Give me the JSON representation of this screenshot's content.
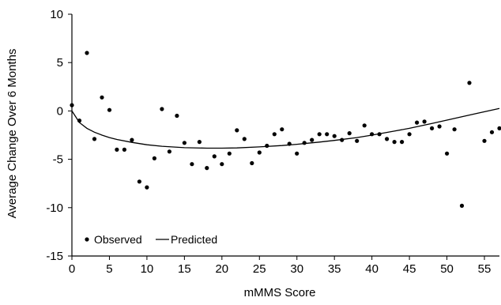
{
  "chart_data": {
    "type": "scatter",
    "title": "",
    "xlabel": "mMMS Score",
    "ylabel": "Average Change Over 6 Months",
    "xlim": [
      0,
      57
    ],
    "ylim": [
      -15,
      10
    ],
    "xticks": [
      0,
      5,
      10,
      15,
      20,
      25,
      30,
      35,
      40,
      45,
      50,
      55
    ],
    "yticks": [
      10,
      5,
      0,
      -5,
      -10,
      -15
    ],
    "grid": false,
    "legend_position": "bottom-left",
    "series": [
      {
        "name": "Observed",
        "kind": "points",
        "points": [
          [
            0,
            0.6
          ],
          [
            1,
            -1.0
          ],
          [
            2,
            6.0
          ],
          [
            3,
            -2.9
          ],
          [
            4,
            1.4
          ],
          [
            5,
            0.1
          ],
          [
            6,
            -4.0
          ],
          [
            7,
            -4.0
          ],
          [
            8,
            -3.0
          ],
          [
            9,
            -7.3
          ],
          [
            10,
            -7.9
          ],
          [
            11,
            -4.9
          ],
          [
            12,
            0.2
          ],
          [
            13,
            -4.2
          ],
          [
            14,
            -0.5
          ],
          [
            15,
            -3.3
          ],
          [
            16,
            -5.5
          ],
          [
            17,
            -3.2
          ],
          [
            18,
            -5.9
          ],
          [
            19,
            -4.7
          ],
          [
            20,
            -5.5
          ],
          [
            21,
            -4.4
          ],
          [
            22,
            -2.0
          ],
          [
            23,
            -2.9
          ],
          [
            24,
            -5.4
          ],
          [
            25,
            -4.3
          ],
          [
            26,
            -3.6
          ],
          [
            27,
            -2.4
          ],
          [
            28,
            -1.9
          ],
          [
            29,
            -3.4
          ],
          [
            30,
            -4.4
          ],
          [
            31,
            -3.3
          ],
          [
            32,
            -3.0
          ],
          [
            33,
            -2.4
          ],
          [
            34,
            -2.4
          ],
          [
            35,
            -2.6
          ],
          [
            36,
            -3.0
          ],
          [
            37,
            -2.3
          ],
          [
            38,
            -3.1
          ],
          [
            39,
            -1.5
          ],
          [
            40,
            -2.4
          ],
          [
            41,
            -2.4
          ],
          [
            42,
            -2.9
          ],
          [
            43,
            -3.2
          ],
          [
            44,
            -3.2
          ],
          [
            45,
            -2.4
          ],
          [
            46,
            -1.2
          ],
          [
            47,
            -1.1
          ],
          [
            48,
            -1.8
          ],
          [
            49,
            -1.6
          ],
          [
            50,
            -4.4
          ],
          [
            51,
            -1.9
          ],
          [
            52,
            -9.8
          ],
          [
            53,
            2.9
          ],
          [
            55,
            -3.1
          ],
          [
            56,
            -2.2
          ],
          [
            57,
            -1.8
          ]
        ]
      },
      {
        "name": "Predicted",
        "kind": "line",
        "points": [
          [
            0,
            0.0
          ],
          [
            1,
            -1.2
          ],
          [
            2,
            -1.8
          ],
          [
            3,
            -2.2
          ],
          [
            4,
            -2.5
          ],
          [
            5,
            -2.75
          ],
          [
            6,
            -2.95
          ],
          [
            8,
            -3.25
          ],
          [
            10,
            -3.5
          ],
          [
            12,
            -3.65
          ],
          [
            15,
            -3.8
          ],
          [
            18,
            -3.85
          ],
          [
            20,
            -3.85
          ],
          [
            22,
            -3.82
          ],
          [
            25,
            -3.72
          ],
          [
            28,
            -3.58
          ],
          [
            30,
            -3.45
          ],
          [
            33,
            -3.22
          ],
          [
            35,
            -3.05
          ],
          [
            38,
            -2.75
          ],
          [
            40,
            -2.5
          ],
          [
            43,
            -2.08
          ],
          [
            45,
            -1.8
          ],
          [
            48,
            -1.3
          ],
          [
            50,
            -0.95
          ],
          [
            52,
            -0.6
          ],
          [
            54,
            -0.25
          ],
          [
            57,
            0.25
          ]
        ]
      }
    ],
    "legend": [
      {
        "label": "Observed",
        "symbol": "dot"
      },
      {
        "label": "Predicted",
        "symbol": "line"
      }
    ]
  }
}
